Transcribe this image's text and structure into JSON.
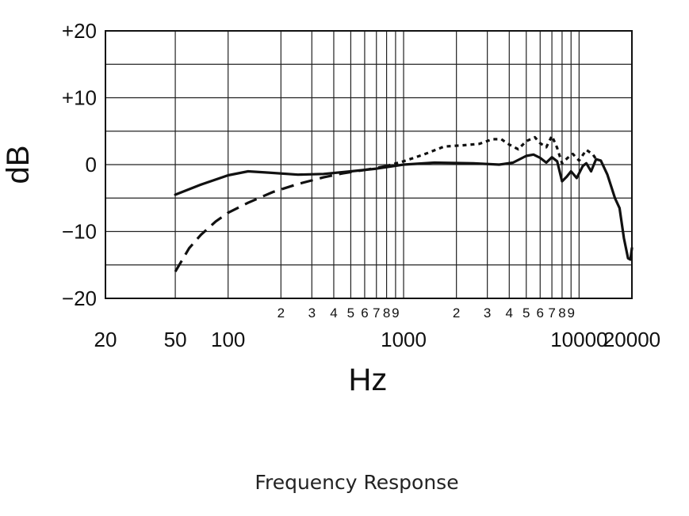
{
  "chart_data": {
    "type": "line",
    "title": "",
    "caption": "Frequency Response",
    "xlabel": "Hz",
    "ylabel": "dB",
    "x_scale": "log",
    "xlim": [
      20,
      20000
    ],
    "ylim": [
      -20,
      20
    ],
    "grid": true,
    "y_ticks": [
      "+20",
      "+10",
      "0",
      "−10",
      "−20"
    ],
    "y_tick_values": [
      20,
      10,
      0,
      -10,
      -20
    ],
    "x_major_labels": [
      {
        "value": 20,
        "label": "20"
      },
      {
        "value": 50,
        "label": "50"
      },
      {
        "value": 100,
        "label": "100"
      },
      {
        "value": 1000,
        "label": "1000"
      },
      {
        "value": 10000,
        "label": "10000"
      },
      {
        "value": 20000,
        "label": "20000"
      }
    ],
    "x_minor_labels": [
      {
        "value": 200,
        "label": "2"
      },
      {
        "value": 300,
        "label": "3"
      },
      {
        "value": 400,
        "label": "4"
      },
      {
        "value": 500,
        "label": "5"
      },
      {
        "value": 600,
        "label": "6"
      },
      {
        "value": 700,
        "label": "7"
      },
      {
        "value": 800,
        "label": "8"
      },
      {
        "value": 900,
        "label": "9"
      },
      {
        "value": 2000,
        "label": "2"
      },
      {
        "value": 3000,
        "label": "3"
      },
      {
        "value": 4000,
        "label": "4"
      },
      {
        "value": 5000,
        "label": "5"
      },
      {
        "value": 6000,
        "label": "6"
      },
      {
        "value": 7000,
        "label": "7"
      },
      {
        "value": 8000,
        "label": "8"
      },
      {
        "value": 9000,
        "label": "9"
      }
    ],
    "series": [
      {
        "style": "solid",
        "points": [
          [
            50,
            -4.5
          ],
          [
            70,
            -3.0
          ],
          [
            100,
            -1.6
          ],
          [
            130,
            -1.0
          ],
          [
            170,
            -1.2
          ],
          [
            250,
            -1.5
          ],
          [
            350,
            -1.4
          ],
          [
            500,
            -1.0
          ],
          [
            700,
            -0.6
          ],
          [
            1000,
            0.0
          ],
          [
            1500,
            0.3
          ],
          [
            2500,
            0.2
          ],
          [
            3500,
            0.0
          ],
          [
            4200,
            0.3
          ],
          [
            5000,
            1.3
          ],
          [
            5500,
            1.5
          ],
          [
            6000,
            1.0
          ],
          [
            6500,
            0.3
          ],
          [
            7000,
            1.1
          ],
          [
            7500,
            0.5
          ],
          [
            8000,
            -2.5
          ],
          [
            8500,
            -1.8
          ],
          [
            9000,
            -1.0
          ],
          [
            9700,
            -2.0
          ],
          [
            10500,
            -0.2
          ],
          [
            11000,
            0.2
          ],
          [
            11700,
            -1.0
          ],
          [
            12500,
            0.8
          ],
          [
            13300,
            0.6
          ],
          [
            14500,
            -1.5
          ],
          [
            16000,
            -5.0
          ],
          [
            17000,
            -6.5
          ],
          [
            18000,
            -11.0
          ],
          [
            19000,
            -14.0
          ],
          [
            19600,
            -14.2
          ],
          [
            20000,
            -12.5
          ]
        ]
      },
      {
        "style": "dashed",
        "points": [
          [
            50,
            -16.0
          ],
          [
            60,
            -12.5
          ],
          [
            70,
            -10.5
          ],
          [
            85,
            -8.5
          ],
          [
            100,
            -7.2
          ],
          [
            130,
            -5.7
          ],
          [
            180,
            -4.1
          ],
          [
            250,
            -2.9
          ],
          [
            350,
            -1.9
          ],
          [
            450,
            -1.3
          ],
          [
            600,
            -0.8
          ],
          [
            800,
            -0.2
          ]
        ]
      },
      {
        "style": "dotted",
        "points": [
          [
            800,
            -0.2
          ],
          [
            1000,
            0.5
          ],
          [
            1300,
            1.5
          ],
          [
            1700,
            2.7
          ],
          [
            2200,
            2.9
          ],
          [
            2700,
            3.1
          ],
          [
            3200,
            3.8
          ],
          [
            3600,
            3.8
          ],
          [
            4000,
            3.0
          ],
          [
            4500,
            2.3
          ],
          [
            5000,
            3.5
          ],
          [
            5600,
            4.1
          ],
          [
            6000,
            3.2
          ],
          [
            6500,
            2.6
          ],
          [
            7000,
            4.3
          ],
          [
            7500,
            2.5
          ],
          [
            8000,
            0.2
          ],
          [
            8600,
            1.0
          ],
          [
            9200,
            1.6
          ],
          [
            10000,
            0.6
          ],
          [
            11000,
            2.2
          ],
          [
            12000,
            1.5
          ],
          [
            12500,
            0.8
          ]
        ]
      }
    ]
  }
}
